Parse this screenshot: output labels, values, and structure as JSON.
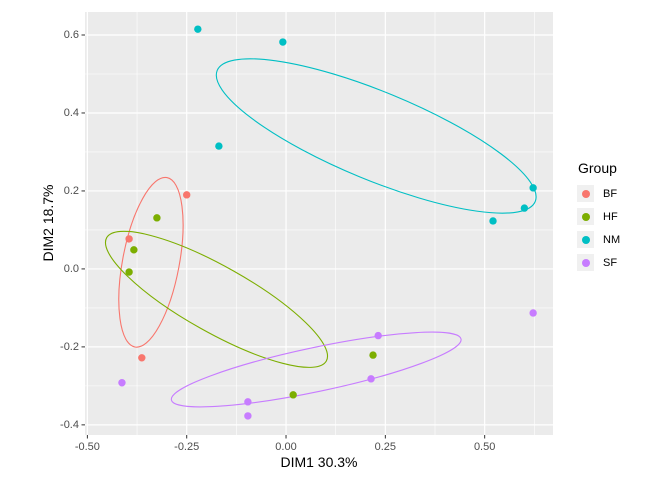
{
  "chart_data": {
    "type": "scatter",
    "title": "",
    "xlabel": "DIM1 30.3%",
    "ylabel": "DIM2 18.7%",
    "xlim": [
      -0.506,
      0.672
    ],
    "ylim": [
      -0.426,
      0.659
    ],
    "x_ticks": [
      {
        "value": -0.5,
        "label": "-0.50"
      },
      {
        "value": -0.25,
        "label": "-0.25"
      },
      {
        "value": 0.0,
        "label": "0.00"
      },
      {
        "value": 0.25,
        "label": "0.25"
      },
      {
        "value": 0.5,
        "label": "0.50"
      }
    ],
    "y_ticks": [
      {
        "value": -0.4,
        "label": "-0.4"
      },
      {
        "value": -0.2,
        "label": "-0.2"
      },
      {
        "value": 0.0,
        "label": "0.0"
      },
      {
        "value": 0.2,
        "label": "0.2"
      },
      {
        "value": 0.4,
        "label": "0.4"
      },
      {
        "value": 0.6,
        "label": "0.6"
      }
    ],
    "grid": {
      "major": true,
      "minor": true
    },
    "legend": {
      "title": "Group",
      "position": "right"
    },
    "colors": {
      "panel_bg": "#EBEBEB",
      "grid": "#FFFFFF",
      "tick_mark": "#333333",
      "tick_label": "#4D4D4D"
    },
    "series": [
      {
        "name": "BF",
        "color": "#F8766D",
        "points": [
          [
            -0.25,
            0.19
          ],
          [
            -0.395,
            0.077
          ],
          [
            -0.363,
            -0.228
          ]
        ],
        "ellipse": {
          "center": [
            -0.34,
            0.017
          ],
          "a": 0.219,
          "b": 0.072,
          "angle_deg": 79.3
        }
      },
      {
        "name": "HF",
        "color": "#7CAE00",
        "points": [
          [
            -0.325,
            0.131
          ],
          [
            -0.383,
            0.049
          ],
          [
            -0.395,
            -0.008
          ],
          [
            0.018,
            -0.323
          ],
          [
            0.219,
            -0.221
          ]
        ],
        "ellipse": {
          "center": [
            -0.175,
            -0.078
          ],
          "a": 0.32,
          "b": 0.084,
          "angle_deg": -29.3
        }
      },
      {
        "name": "NM",
        "color": "#00BFC4",
        "points": [
          [
            -0.222,
            0.615
          ],
          [
            -0.008,
            0.582
          ],
          [
            -0.169,
            0.315
          ],
          [
            0.622,
            0.208
          ],
          [
            0.6,
            0.156
          ],
          [
            0.521,
            0.123
          ]
        ],
        "ellipse": {
          "center": [
            0.227,
            0.341
          ],
          "a": 0.437,
          "b": 0.112,
          "angle_deg": -22.4
        }
      },
      {
        "name": "SF",
        "color": "#C77CFF",
        "points": [
          [
            -0.413,
            -0.292
          ],
          [
            -0.096,
            -0.341
          ],
          [
            -0.096,
            -0.377
          ],
          [
            0.232,
            -0.171
          ],
          [
            0.214,
            -0.282
          ],
          [
            0.622,
            -0.113
          ]
        ],
        "ellipse": {
          "center": [
            0.076,
            -0.258
          ],
          "a": 0.376,
          "b": 0.056,
          "angle_deg": 11.9
        }
      }
    ]
  }
}
